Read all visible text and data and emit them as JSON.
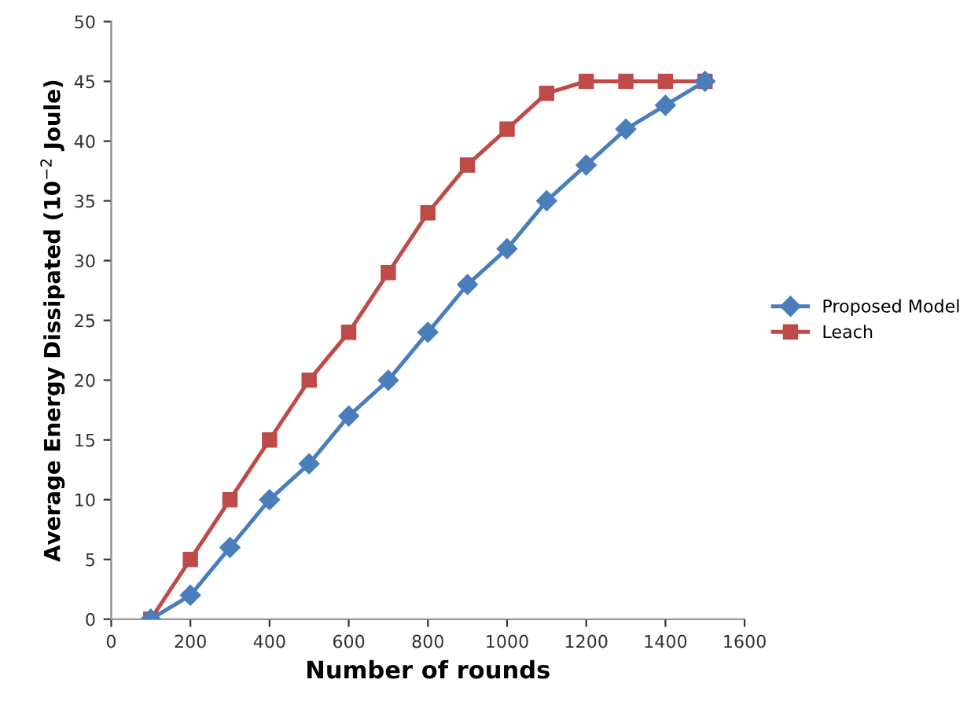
{
  "chart_data": {
    "type": "line",
    "xlabel": "Number of rounds",
    "ylabel": "Average Energy Dissipated (10$^{−2}$ Joule)",
    "x": [
      100,
      200,
      300,
      400,
      500,
      600,
      700,
      800,
      900,
      1000,
      1100,
      1200,
      1300,
      1400,
      1500
    ],
    "series": [
      {
        "name": "Proposed Model",
        "color": "#4a7ebb",
        "marker": "diamond",
        "values": [
          0,
          2,
          6,
          10,
          13,
          17,
          20,
          24,
          28,
          31,
          35,
          38,
          41,
          43,
          45
        ]
      },
      {
        "name": "Leach",
        "color": "#be4b48",
        "marker": "square",
        "values": [
          0,
          5,
          10,
          15,
          20,
          24,
          29,
          34,
          38,
          41,
          44,
          45,
          45,
          45,
          45
        ]
      }
    ],
    "xlim": [
      0,
      1600
    ],
    "xticks": [
      0,
      200,
      400,
      600,
      800,
      1000,
      1200,
      1400,
      1600
    ],
    "ylim": [
      0,
      50
    ],
    "yticks": [
      0,
      5,
      10,
      15,
      20,
      25,
      30,
      35,
      40,
      45,
      50
    ],
    "grid": false,
    "legend": "right",
    "line_style": "solid"
  }
}
